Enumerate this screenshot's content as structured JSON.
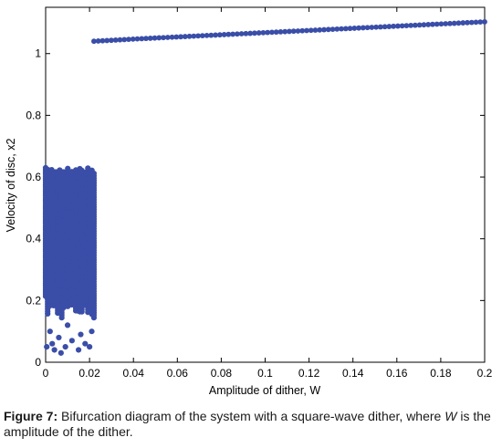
{
  "caption": {
    "label": "Figure 7:",
    "text": " Bifurcation diagram of the system with a square-wave dither, where ",
    "italic": "W",
    "text2": " is the amplitude of the dither."
  },
  "colors": {
    "marker": "#3a4ea8",
    "axis": "#000000"
  },
  "chart_data": {
    "type": "scatter",
    "title": "",
    "xlabel": "Amplitude of dither, W",
    "ylabel": "Velocity of disc, x2",
    "xlim": [
      0,
      0.2
    ],
    "ylim": [
      0,
      1.15
    ],
    "grid": false,
    "xticks": [
      "0",
      "0.02",
      "0.04",
      "0.06",
      "0.08",
      "0.1",
      "0.12",
      "0.14",
      "0.16",
      "0.18",
      "0.2"
    ],
    "yticks": [
      "0",
      "0.2",
      "0.4",
      "0.6",
      "0.8",
      "1"
    ],
    "series": [
      {
        "name": "",
        "description": "chaotic band",
        "x_range": [
          0,
          0.022
        ],
        "y_range": [
          0.02,
          0.63
        ],
        "points": [
          [
            0.0005,
            0.05
          ],
          [
            0.002,
            0.1
          ],
          [
            0.003,
            0.06
          ],
          [
            0.004,
            0.04
          ],
          [
            0.006,
            0.08
          ],
          [
            0.007,
            0.03
          ],
          [
            0.009,
            0.05
          ],
          [
            0.01,
            0.12
          ],
          [
            0.012,
            0.07
          ],
          [
            0.015,
            0.04
          ],
          [
            0.016,
            0.09
          ],
          [
            0.018,
            0.06
          ],
          [
            0.02,
            0.05
          ],
          [
            0.021,
            0.1
          ],
          [
            0.005,
            0.3
          ],
          [
            0.008,
            0.33
          ],
          [
            0.011,
            0.22
          ],
          [
            0.014,
            0.4
          ],
          [
            0.007,
            0.18
          ],
          [
            0.019,
            0.2
          ]
        ]
      },
      {
        "name": "",
        "description": "periodic branch",
        "x": [
          0.022,
          0.04,
          0.06,
          0.08,
          0.1,
          0.12,
          0.14,
          0.16,
          0.18,
          0.2
        ],
        "y": [
          1.04,
          1.047,
          1.054,
          1.061,
          1.068,
          1.075,
          1.082,
          1.089,
          1.096,
          1.103
        ]
      }
    ]
  }
}
